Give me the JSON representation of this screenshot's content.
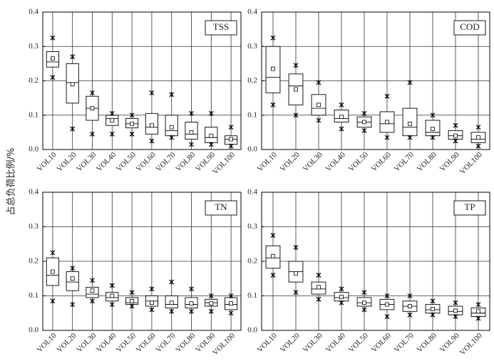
{
  "ylabel": "占总负荷比例/%",
  "chart_data": [
    {
      "type": "box",
      "title": "TSS",
      "grid": true,
      "color": "#000000",
      "categories": [
        "VOL10",
        "VOL20",
        "VOL30",
        "VOL40",
        "VOL50",
        "VOL60",
        "VOL70",
        "VOL80",
        "VOL90",
        "VOL100"
      ],
      "ylim": [
        0,
        0.4
      ],
      "yticks": [
        {
          "value": 0,
          "label": "0.0"
        },
        0.1,
        0.2,
        0.3,
        0.4
      ],
      "stats": {
        "min": [
          0.21,
          0.06,
          0.045,
          0.045,
          0.045,
          0.025,
          0.035,
          0.015,
          0.015,
          0.01
        ],
        "q1": [
          0.24,
          0.135,
          0.085,
          0.07,
          0.063,
          0.045,
          0.04,
          0.03,
          0.02,
          0.015
        ],
        "median": [
          0.255,
          0.195,
          0.12,
          0.09,
          0.075,
          0.065,
          0.055,
          0.045,
          0.035,
          0.03
        ],
        "q3": [
          0.285,
          0.25,
          0.155,
          0.1,
          0.09,
          0.105,
          0.1,
          0.08,
          0.065,
          0.04
        ],
        "max": [
          0.325,
          0.27,
          0.165,
          0.105,
          0.1,
          0.165,
          0.16,
          0.105,
          0.105,
          0.065
        ],
        "mean": [
          0.265,
          0.19,
          0.12,
          0.085,
          0.075,
          0.07,
          0.065,
          0.05,
          0.04,
          0.03
        ]
      }
    },
    {
      "type": "box",
      "title": "COD",
      "grid": true,
      "color": "#000000",
      "categories": [
        "VOL10",
        "VOL20",
        "VOL30",
        "VOL40",
        "VOL50",
        "VOL60",
        "VOL70",
        "VOL80",
        "VOL90",
        "VOL100"
      ],
      "ylim": [
        0,
        0.4
      ],
      "yticks": [
        {
          "value": 0,
          "label": "0.0"
        },
        0.1,
        0.2,
        0.3,
        0.4
      ],
      "stats": {
        "min": [
          0.13,
          0.1,
          0.085,
          0.06,
          0.055,
          0.035,
          0.035,
          0.035,
          0.025,
          0.01
        ],
        "q1": [
          0.165,
          0.13,
          0.1,
          0.08,
          0.065,
          0.05,
          0.04,
          0.04,
          0.03,
          0.02
        ],
        "median": [
          0.21,
          0.185,
          0.12,
          0.09,
          0.08,
          0.075,
          0.065,
          0.05,
          0.04,
          0.03
        ],
        "q3": [
          0.3,
          0.22,
          0.16,
          0.115,
          0.095,
          0.11,
          0.12,
          0.085,
          0.055,
          0.05
        ],
        "max": [
          0.325,
          0.245,
          0.195,
          0.13,
          0.105,
          0.155,
          0.195,
          0.1,
          0.07,
          0.065
        ],
        "mean": [
          0.235,
          0.175,
          0.13,
          0.095,
          0.08,
          0.08,
          0.075,
          0.06,
          0.04,
          0.035
        ]
      }
    },
    {
      "type": "box",
      "title": "TN",
      "grid": true,
      "color": "#000000",
      "categories": [
        "VOL10",
        "VOL20",
        "VOL30",
        "VOL40",
        "VOL50",
        "VOL60",
        "VOL70",
        "VOL80",
        "VOL90",
        "VOL100"
      ],
      "ylim": [
        0,
        0.4
      ],
      "yticks": [
        {
          "value": 0,
          "label": "0.0"
        },
        0.1,
        0.2,
        0.3,
        0.4
      ],
      "stats": {
        "min": [
          0.085,
          0.075,
          0.085,
          0.075,
          0.07,
          0.06,
          0.055,
          0.055,
          0.055,
          0.05
        ],
        "q1": [
          0.13,
          0.115,
          0.095,
          0.085,
          0.075,
          0.07,
          0.065,
          0.065,
          0.07,
          0.06
        ],
        "median": [
          0.16,
          0.14,
          0.105,
          0.095,
          0.08,
          0.085,
          0.075,
          0.075,
          0.08,
          0.075
        ],
        "q3": [
          0.21,
          0.17,
          0.125,
          0.11,
          0.095,
          0.1,
          0.1,
          0.095,
          0.09,
          0.095
        ],
        "max": [
          0.225,
          0.18,
          0.145,
          0.13,
          0.11,
          0.12,
          0.14,
          0.12,
          0.1,
          0.1
        ],
        "mean": [
          0.17,
          0.15,
          0.115,
          0.1,
          0.085,
          0.08,
          0.08,
          0.078,
          0.078,
          0.078
        ]
      }
    },
    {
      "type": "box",
      "title": "TP",
      "grid": true,
      "color": "#000000",
      "categories": [
        "VOL10",
        "VOL20",
        "VOL30",
        "VOL40",
        "VOL50",
        "VOL60",
        "VOL70",
        "VOL80",
        "VOL90",
        "VOL100"
      ],
      "ylim": [
        0,
        0.4
      ],
      "yticks": [
        {
          "value": 0,
          "label": "0.0"
        },
        0.1,
        0.2,
        0.3,
        0.4
      ],
      "stats": {
        "min": [
          0.16,
          0.11,
          0.09,
          0.08,
          0.06,
          0.04,
          0.045,
          0.045,
          0.04,
          0.035
        ],
        "q1": [
          0.18,
          0.14,
          0.105,
          0.085,
          0.07,
          0.06,
          0.055,
          0.05,
          0.045,
          0.04
        ],
        "median": [
          0.21,
          0.17,
          0.12,
          0.095,
          0.08,
          0.075,
          0.07,
          0.06,
          0.055,
          0.05
        ],
        "q3": [
          0.245,
          0.2,
          0.14,
          0.11,
          0.095,
          0.09,
          0.085,
          0.075,
          0.07,
          0.065
        ],
        "max": [
          0.275,
          0.24,
          0.16,
          0.12,
          0.11,
          0.1,
          0.1,
          0.085,
          0.08,
          0.075
        ],
        "mean": [
          0.215,
          0.165,
          0.125,
          0.097,
          0.08,
          0.075,
          0.07,
          0.062,
          0.057,
          0.055
        ]
      }
    }
  ]
}
